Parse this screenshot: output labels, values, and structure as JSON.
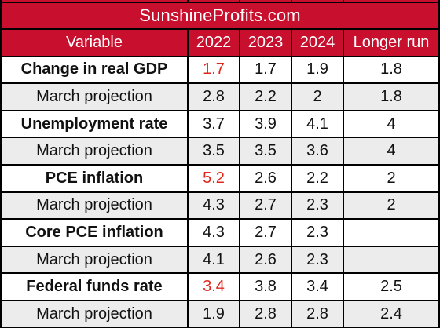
{
  "brand": "SunshineProfits.com",
  "header": [
    "Variable",
    "2022",
    "2023",
    "2024",
    "Longer run"
  ],
  "rows": [
    {
      "label": "Change in real GDP",
      "bold": true,
      "values": [
        "1.7",
        "1.7",
        "1.9",
        "1.8"
      ],
      "red": [
        0
      ]
    },
    {
      "label": "March projection",
      "bold": false,
      "values": [
        "2.8",
        "2.2",
        "2",
        "1.8"
      ],
      "red": []
    },
    {
      "label": "Unemployment rate",
      "bold": true,
      "values": [
        "3.7",
        "3.9",
        "4.1",
        "4"
      ],
      "red": []
    },
    {
      "label": "March projection",
      "bold": false,
      "values": [
        "3.5",
        "3.5",
        "3.6",
        "4"
      ],
      "red": []
    },
    {
      "label": "PCE inflation",
      "bold": true,
      "values": [
        "5.2",
        "2.6",
        "2.2",
        "2"
      ],
      "red": [
        0
      ]
    },
    {
      "label": "March projection",
      "bold": false,
      "values": [
        "4.3",
        "2.7",
        "2.3",
        "2"
      ],
      "red": []
    },
    {
      "label": "Core PCE inflation",
      "bold": true,
      "values": [
        "4.3",
        "2.7",
        "2.3",
        ""
      ],
      "red": []
    },
    {
      "label": "March projection",
      "bold": false,
      "values": [
        "4.1",
        "2.6",
        "2.3",
        ""
      ],
      "red": []
    },
    {
      "label": "Federal funds rate",
      "bold": true,
      "values": [
        "3.4",
        "3.8",
        "3.4",
        "2.5"
      ],
      "red": [
        0
      ]
    },
    {
      "label": "March projection",
      "bold": false,
      "values": [
        "1.9",
        "2.8",
        "2.8",
        "2.4"
      ],
      "red": []
    }
  ],
  "colors": {
    "accent": "#c8102e",
    "highlight_text": "#e0261c",
    "row_alt": "#ececec",
    "grid_lines": "#000000"
  }
}
